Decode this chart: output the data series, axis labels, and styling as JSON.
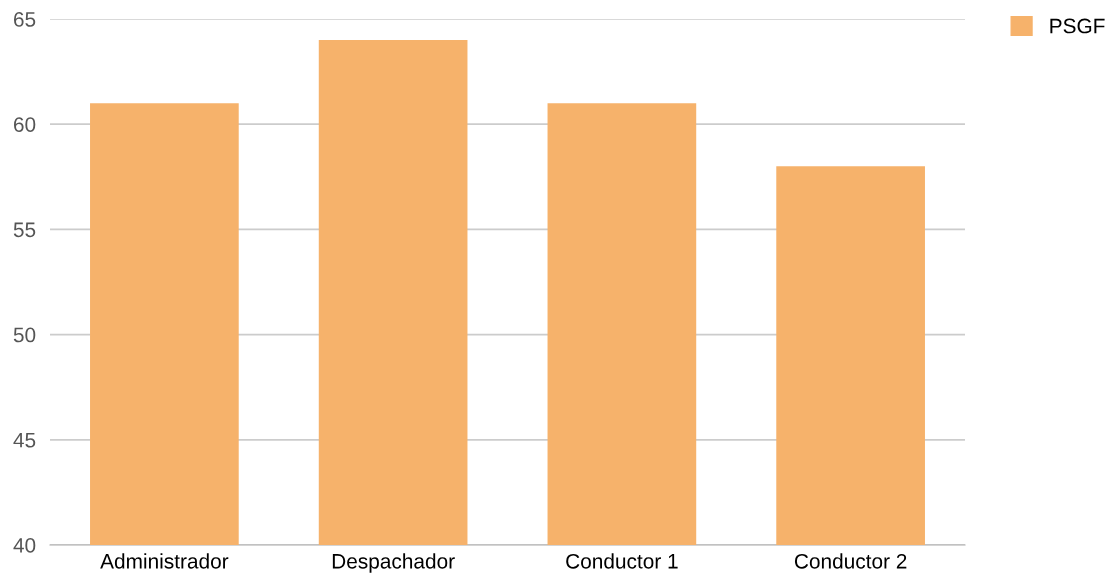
{
  "chart_data": {
    "type": "bar",
    "categories": [
      "Administrador",
      "Despachador",
      "Conductor 1",
      "Conductor 2"
    ],
    "series": [
      {
        "name": "PSGF",
        "color": "#f6b26b",
        "values": [
          61,
          64,
          61,
          58
        ]
      }
    ],
    "ylim": [
      40,
      65
    ],
    "yticks": [
      40,
      45,
      50,
      55,
      60,
      65
    ],
    "grid": "y",
    "legend": "top right"
  }
}
